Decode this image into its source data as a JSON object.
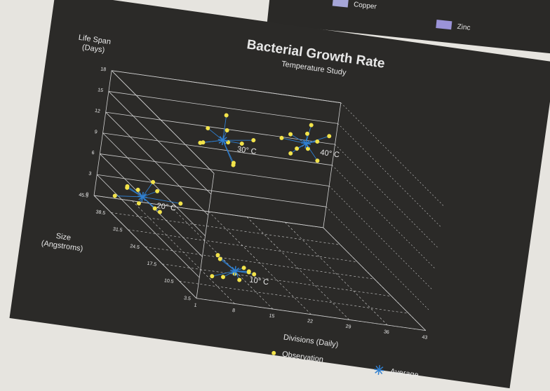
{
  "background_legend": [
    "Copper",
    "Zinc"
  ],
  "chart_data": {
    "type": "scatter3d",
    "title": "Bacterial Growth Rate",
    "subtitle": "Temperature Study",
    "y_label": [
      "Life Span",
      "(Days)"
    ],
    "z_label": [
      "Size",
      "(Angstroms)"
    ],
    "x_label": "Divisions (Daily)",
    "xlim": [
      1,
      43
    ],
    "xticks": [
      1,
      8,
      15,
      22,
      29,
      36,
      43
    ],
    "zlim": [
      3.5,
      45.5
    ],
    "zticks": [
      3.5,
      10.5,
      17.5,
      24.5,
      31.5,
      38.5,
      45.5
    ],
    "ylim": [
      0,
      18
    ],
    "yticks": [
      0,
      3,
      6,
      9,
      12,
      15,
      18
    ],
    "series": [
      {
        "name": "Observation",
        "color": "#f2e34a",
        "x": [
          7,
          8,
          9,
          11,
          12,
          10,
          13,
          9,
          6,
          12,
          2,
          4,
          5,
          7,
          8,
          9,
          3,
          10,
          6,
          11,
          16,
          18,
          19,
          21,
          22,
          23,
          17,
          24,
          20,
          25,
          34,
          35,
          36,
          38,
          39,
          40,
          37,
          33,
          41,
          36
        ],
        "z": [
          7,
          12,
          5,
          11,
          8,
          6,
          10,
          13,
          9,
          6,
          40,
          36,
          42,
          35,
          39,
          37,
          33,
          41,
          44,
          34,
          38,
          44,
          36,
          42,
          39,
          45,
          41,
          37,
          35,
          43,
          44,
          45,
          42,
          45,
          44,
          45,
          43,
          45,
          44,
          45
        ],
        "y": [
          2.5,
          4,
          3,
          2,
          3.5,
          4.5,
          2.8,
          3.2,
          1.8,
          3.8,
          2,
          4.5,
          3,
          2.5,
          5,
          1.5,
          3.5,
          3.2,
          2.2,
          4,
          14,
          10,
          13,
          15,
          9,
          12,
          11,
          13.5,
          10.5,
          11,
          13,
          10,
          14,
          11,
          12.5,
          9.5,
          15,
          12,
          13.5,
          10.8
        ]
      },
      {
        "name": "Average",
        "color": "#2f7fd0",
        "x": [
          10,
          6,
          20,
          37
        ],
        "z": [
          9,
          38,
          40,
          44
        ],
        "y": [
          3,
          3,
          12,
          12
        ]
      }
    ],
    "annotations": [
      "10° C",
      "20° C",
      "30° C",
      "40° C"
    ]
  }
}
